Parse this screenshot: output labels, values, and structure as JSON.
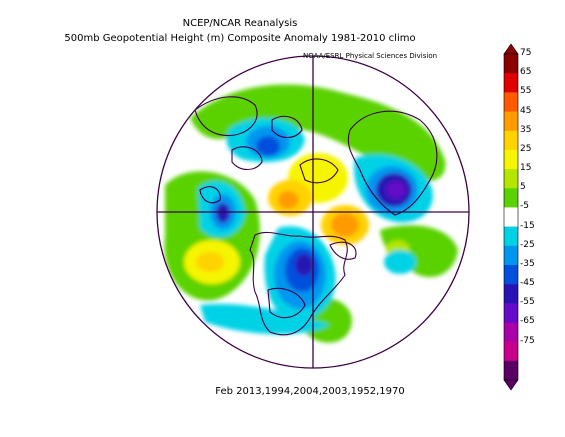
{
  "header": {
    "title": "NCEP/NCAR Reanalysis",
    "subtitle": "500mb Geopotential Height (m) Composite Anomaly 1981-2010 climo",
    "credit": "NOAA/ESRL Physical Sciences Division"
  },
  "footer": {
    "caption": "Feb 2013,1994,2004,2003,1952,1970"
  },
  "colorbar": {
    "labels": [
      "75",
      "65",
      "55",
      "45",
      "35",
      "25",
      "15",
      "5",
      "-5",
      "-15",
      "-25",
      "-35",
      "-45",
      "-55",
      "-65",
      "-75"
    ],
    "colors": [
      "#8b0000",
      "#e00000",
      "#ff5a00",
      "#ff9a00",
      "#ffd200",
      "#f5f500",
      "#b4e600",
      "#5ad200",
      "#ffffff",
      "#00d2e6",
      "#0096f0",
      "#0050dc",
      "#2814b4",
      "#640ac8",
      "#aa00aa",
      "#c8008c",
      "#5a0064"
    ]
  },
  "map": {
    "projection": "polar stereographic",
    "colors": {
      "coast": "#3c0046",
      "ring": "#3c0046"
    }
  }
}
